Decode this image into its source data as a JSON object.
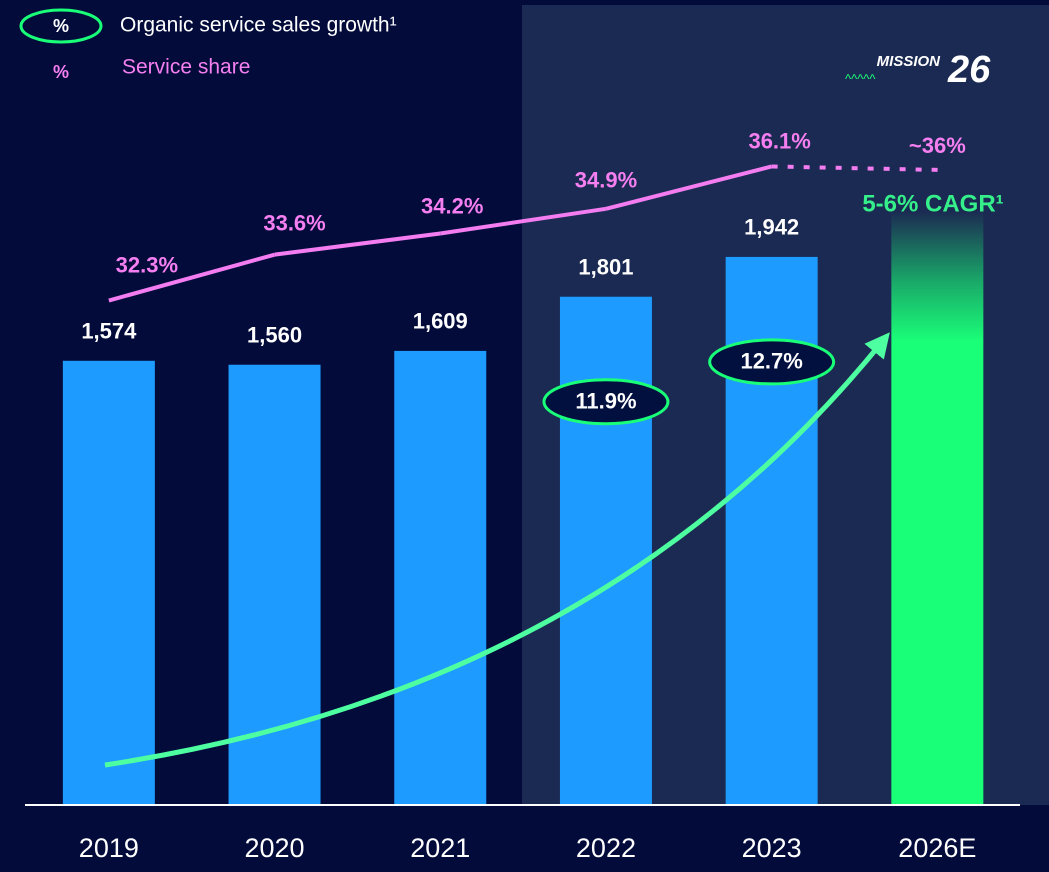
{
  "chart_data": {
    "type": "bar",
    "categories": [
      "2019",
      "2020",
      "2021",
      "2022",
      "2023",
      "2026E"
    ],
    "values": [
      1574,
      1560,
      1609,
      1801,
      1942,
      2105
    ],
    "value_labels": [
      "1,574",
      "1,560",
      "1,609",
      "1,801",
      "1,942",
      null
    ],
    "color": "#1e9bff",
    "forecast_color": "#1aff78",
    "ylim": [
      0,
      2250
    ],
    "y2lim": [
      18,
      36
    ],
    "legend_symbol": "%",
    "annotation": "5-6% CAGR¹",
    "logo": {
      "text": "MISSION",
      "number": "26"
    },
    "series": [
      {
        "name": "Organic service sales growth¹",
        "type": "oval",
        "color": "#1aff78",
        "values": [
          null,
          null,
          null,
          11.9,
          12.7,
          null
        ],
        "value_labels": [
          null,
          null,
          null,
          "11.9%",
          "12.7%",
          null
        ]
      },
      {
        "name": "Service share",
        "type": "line",
        "axis": "y2",
        "color": "#f27cf0",
        "values": [
          32.3,
          33.6,
          34.2,
          34.9,
          36.1,
          36
        ],
        "value_labels": [
          "32.3%",
          "33.6%",
          "34.2%",
          "34.9%",
          "36.1%",
          "~36%"
        ]
      }
    ]
  }
}
